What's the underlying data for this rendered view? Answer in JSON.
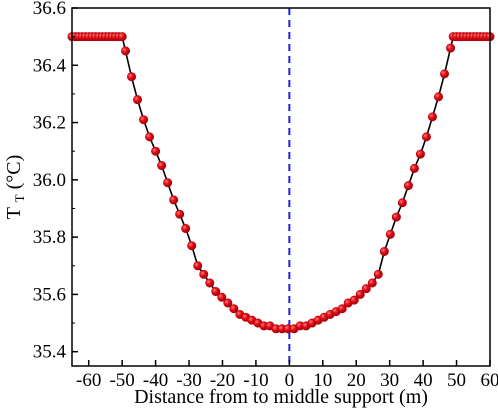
{
  "chart_data": {
    "type": "line",
    "title": "",
    "xlabel": "Distance from  to middle support (m)",
    "ylabel": "T",
    "ylabel_subscript": "T",
    "ylabel_unit": " (°C)",
    "xlim": [
      -65,
      60
    ],
    "ylim": [
      35.35,
      36.6
    ],
    "xticks": [
      -60,
      -50,
      -40,
      -30,
      -20,
      -10,
      0,
      10,
      20,
      30,
      40,
      50,
      60
    ],
    "yticks": [
      35.4,
      35.6,
      35.8,
      36.0,
      36.2,
      36.4,
      36.6
    ],
    "ytick_labels": [
      "35.4",
      "35.6",
      "35.8",
      "36.0",
      "36.2",
      "36.4",
      "36.6"
    ],
    "grid": false,
    "legend": false,
    "reference_line": {
      "x": 0,
      "style": "dashed",
      "color": "#1f1fe6"
    },
    "series": [
      {
        "line_color": "#000000",
        "marker_color": "#e8101a",
        "marker": "circle",
        "x": [
          -65,
          -64,
          -63,
          -62,
          -61,
          -60,
          -59,
          -58,
          -57,
          -56,
          -55,
          -54,
          -53,
          -52,
          -51,
          -50,
          -49,
          -47.2,
          -45.4,
          -43.6,
          -41.8,
          -40,
          -38.2,
          -36.4,
          -34.6,
          -32.8,
          -31,
          -29.2,
          -27.4,
          -25.6,
          -23.8,
          -22,
          -20.2,
          -18.4,
          -16.6,
          -14.8,
          -13,
          -11.2,
          -9.4,
          -7.6,
          -5.8,
          -4,
          -2.2,
          -0.4,
          1.4,
          3.2,
          5,
          6.8,
          8.6,
          10.4,
          12.2,
          14,
          15.8,
          17.6,
          19.4,
          21.2,
          23,
          24.8,
          26.6,
          28.4,
          30.2,
          32,
          33.8,
          35.6,
          37.4,
          39.2,
          41,
          42.8,
          44.6,
          46.4,
          48.2,
          49,
          50,
          51,
          52,
          53,
          54,
          55,
          56,
          57,
          58,
          59,
          60
        ],
        "y": [
          36.5,
          36.5,
          36.5,
          36.5,
          36.5,
          36.5,
          36.5,
          36.5,
          36.5,
          36.5,
          36.5,
          36.5,
          36.5,
          36.5,
          36.5,
          36.5,
          36.45,
          36.36,
          36.28,
          36.21,
          36.15,
          36.1,
          36.05,
          35.99,
          35.93,
          35.88,
          35.83,
          35.77,
          35.7,
          35.67,
          35.64,
          35.61,
          35.59,
          35.57,
          35.55,
          35.53,
          35.52,
          35.51,
          35.5,
          35.49,
          35.49,
          35.48,
          35.48,
          35.48,
          35.48,
          35.49,
          35.49,
          35.5,
          35.51,
          35.52,
          35.53,
          35.54,
          35.55,
          35.57,
          35.58,
          35.6,
          35.62,
          35.64,
          35.67,
          35.75,
          35.81,
          35.87,
          35.92,
          35.98,
          36.04,
          36.09,
          36.15,
          36.22,
          36.29,
          36.37,
          36.46,
          36.5,
          36.5,
          36.5,
          36.5,
          36.5,
          36.5,
          36.5,
          36.5,
          36.5,
          36.5,
          36.5,
          36.5
        ]
      }
    ]
  }
}
